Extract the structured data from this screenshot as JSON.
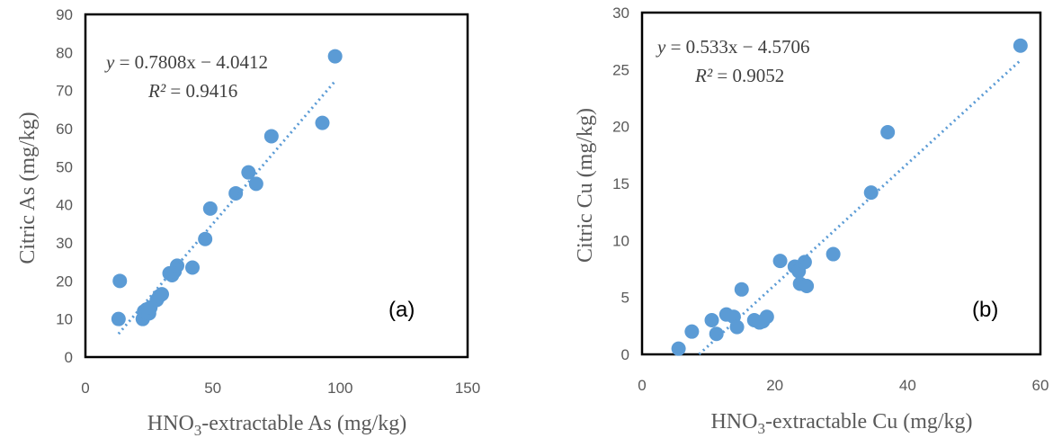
{
  "chart_data": [
    {
      "type": "scatter",
      "panel_label": "(a)",
      "xlabel_main": "HNO",
      "xlabel_sub": "3",
      "xlabel_rest": "-extractable As (mg/kg)",
      "ylabel": "Citric As (mg/kg)",
      "xlim": [
        0,
        150
      ],
      "ylim": [
        0,
        90
      ],
      "xticks": [
        0,
        50,
        100,
        150
      ],
      "yticks": [
        0,
        10,
        20,
        30,
        40,
        50,
        60,
        70,
        80,
        90
      ],
      "equation_y": "y",
      "equation_rest": " = 0.7808x − 4.0412",
      "r2_label": "R²",
      "r2_value": " = 0.9416",
      "trendline": {
        "slope": 0.7808,
        "intercept": -4.0412,
        "x_start": 13,
        "x_end": 98
      },
      "marker_color": "#5B9BD5",
      "points": [
        {
          "x": 13,
          "y": 10
        },
        {
          "x": 13.5,
          "y": 20
        },
        {
          "x": 22.5,
          "y": 10
        },
        {
          "x": 23,
          "y": 12
        },
        {
          "x": 24,
          "y": 12.5
        },
        {
          "x": 25,
          "y": 11.5
        },
        {
          "x": 25.5,
          "y": 13
        },
        {
          "x": 28,
          "y": 15
        },
        {
          "x": 29,
          "y": 16
        },
        {
          "x": 30,
          "y": 16.5
        },
        {
          "x": 33,
          "y": 22
        },
        {
          "x": 34,
          "y": 21.5
        },
        {
          "x": 35,
          "y": 22.5
        },
        {
          "x": 36,
          "y": 24
        },
        {
          "x": 42,
          "y": 23.5
        },
        {
          "x": 47,
          "y": 31
        },
        {
          "x": 49,
          "y": 39
        },
        {
          "x": 59,
          "y": 43
        },
        {
          "x": 64,
          "y": 48.5
        },
        {
          "x": 67,
          "y": 45.5
        },
        {
          "x": 73,
          "y": 58
        },
        {
          "x": 93,
          "y": 61.5
        },
        {
          "x": 98,
          "y": 79
        }
      ]
    },
    {
      "type": "scatter",
      "panel_label": "(b)",
      "xlabel_main": "HNO",
      "xlabel_sub": "3",
      "xlabel_rest": "-extractable Cu (mg/kg)",
      "ylabel": "Citric Cu (mg/kg)",
      "xlim": [
        0,
        60
      ],
      "ylim": [
        0,
        30
      ],
      "xticks": [
        0,
        20,
        40,
        60
      ],
      "yticks": [
        0,
        5,
        10,
        15,
        20,
        25,
        30
      ],
      "equation_y": "y",
      "equation_rest": " = 0.533x − 4.5706",
      "r2_label": "R²",
      "r2_value": " = 0.9052",
      "trendline": {
        "slope": 0.533,
        "intercept": -4.5706,
        "x_start": 8.6,
        "x_end": 57
      },
      "marker_color": "#5B9BD5",
      "points": [
        {
          "x": 5.5,
          "y": 0.5
        },
        {
          "x": 7.5,
          "y": 2
        },
        {
          "x": 10.5,
          "y": 3
        },
        {
          "x": 11.2,
          "y": 1.8
        },
        {
          "x": 12.7,
          "y": 3.5
        },
        {
          "x": 13.8,
          "y": 3.3
        },
        {
          "x": 14.3,
          "y": 2.4
        },
        {
          "x": 15,
          "y": 5.7
        },
        {
          "x": 16.9,
          "y": 3
        },
        {
          "x": 17.7,
          "y": 2.8
        },
        {
          "x": 18.2,
          "y": 2.9
        },
        {
          "x": 18.8,
          "y": 3.3
        },
        {
          "x": 20.8,
          "y": 8.2
        },
        {
          "x": 23,
          "y": 7.7
        },
        {
          "x": 23.6,
          "y": 7.3
        },
        {
          "x": 23.8,
          "y": 6.2
        },
        {
          "x": 24.5,
          "y": 8.1
        },
        {
          "x": 24.8,
          "y": 6
        },
        {
          "x": 28.8,
          "y": 8.8
        },
        {
          "x": 34.5,
          "y": 14.2
        },
        {
          "x": 37,
          "y": 19.5
        },
        {
          "x": 57,
          "y": 27.1
        }
      ]
    }
  ]
}
